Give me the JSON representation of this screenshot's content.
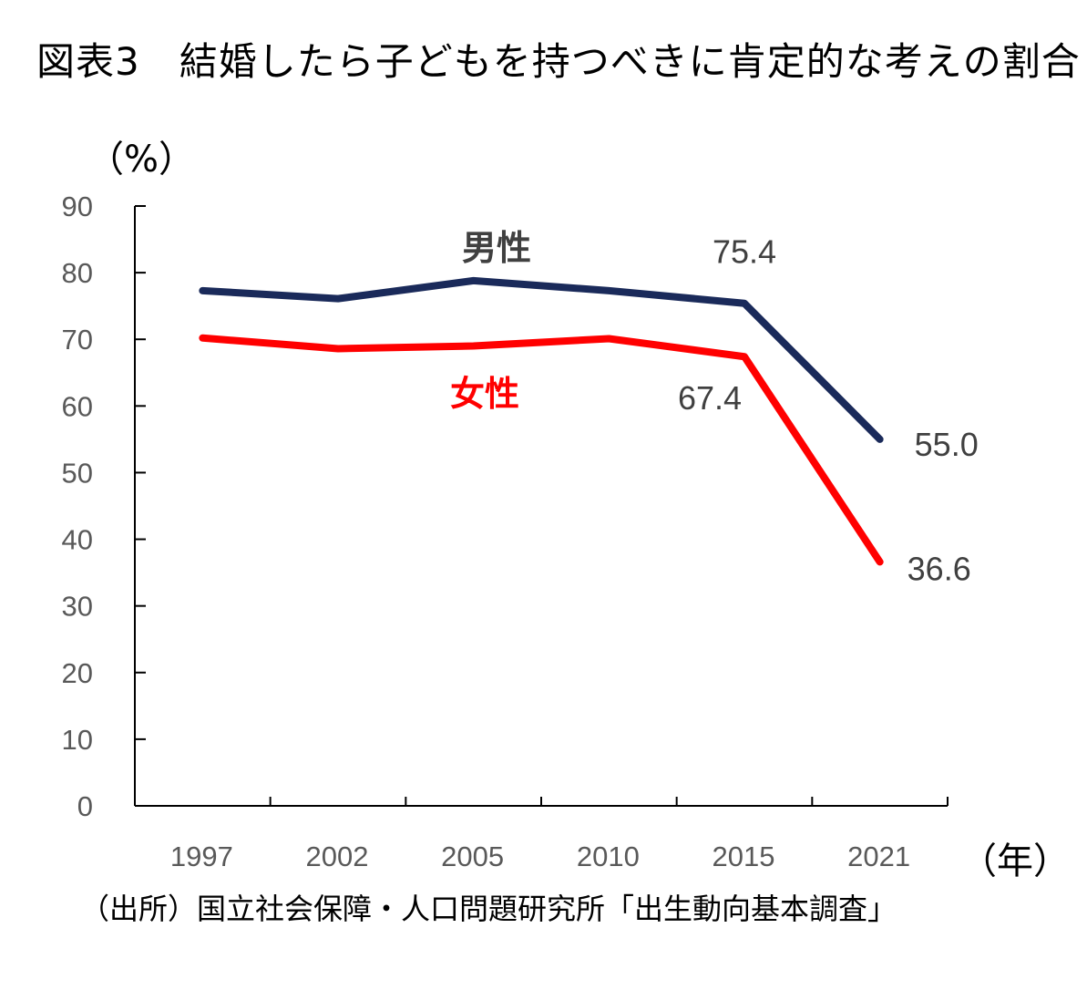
{
  "title": "図表3　結婚したら子どもを持つべきに肯定的な考えの割合",
  "source": "（出所）国立社会保障・人口問題研究所「出生動向基本調査」",
  "y_unit": "（%）",
  "x_unit": "（年）",
  "chart_data": {
    "type": "line",
    "title": "図表3　結婚したら子どもを持つべきに肯定的な考えの割合",
    "xlabel": "（年）",
    "ylabel": "（%）",
    "categories": [
      "1997",
      "2002",
      "2005",
      "2010",
      "2015",
      "2021"
    ],
    "ylim": [
      0,
      90
    ],
    "yticks": [
      0,
      10,
      20,
      30,
      40,
      50,
      60,
      70,
      80,
      90
    ],
    "grid": false,
    "series": [
      {
        "name": "男性",
        "color": "#1a2a5a",
        "values": [
          77.3,
          76.1,
          78.8,
          77.3,
          75.4,
          55.0
        ],
        "data_labels": [
          null,
          null,
          null,
          null,
          "75.4",
          "55.0"
        ]
      },
      {
        "name": "女性",
        "color": "#ff0000",
        "values": [
          70.2,
          68.6,
          69.0,
          70.1,
          67.4,
          36.6
        ],
        "data_labels": [
          null,
          null,
          null,
          null,
          "67.4",
          "36.6"
        ]
      }
    ]
  }
}
